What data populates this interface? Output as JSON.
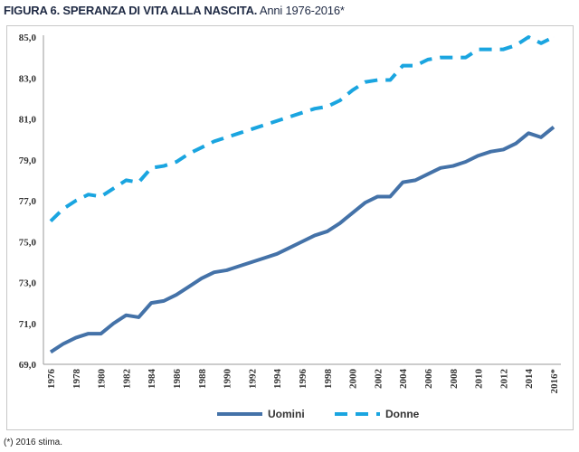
{
  "title": {
    "bold": "FIGURA 6. SPERANZA DI VITA ALLA NASCITA.",
    "normal": " Anni 1976-2016*"
  },
  "footnote": "(*) 2016 stima.",
  "chart_data": {
    "type": "line",
    "title": "FIGURA 6. SPERANZA DI VITA ALLA NASCITA. Anni 1976-2016*",
    "x": [
      1976,
      1977,
      1978,
      1979,
      1980,
      1981,
      1982,
      1983,
      1984,
      1985,
      1986,
      1987,
      1988,
      1989,
      1990,
      1991,
      1992,
      1993,
      1994,
      1995,
      1996,
      1997,
      1998,
      1999,
      2000,
      2001,
      2002,
      2003,
      2004,
      2005,
      2006,
      2007,
      2008,
      2009,
      2010,
      2011,
      2012,
      2013,
      2014,
      2015,
      2016
    ],
    "xtick_labels": [
      "1976",
      "1978",
      "1980",
      "1982",
      "1984",
      "1986",
      "1988",
      "1990",
      "1992",
      "1994",
      "1996",
      "1998",
      "2000",
      "2002",
      "2004",
      "2006",
      "2008",
      "2010",
      "2012",
      "2014",
      "2016*"
    ],
    "ytick_labels": [
      "69,0",
      "71,0",
      "73,0",
      "75,0",
      "77,0",
      "79,0",
      "81,0",
      "83,0",
      "85,0"
    ],
    "ylim": [
      69,
      85
    ],
    "grid": false,
    "legend": "bottom",
    "series": [
      {
        "name": "Uomini",
        "color": "#4472a8",
        "style": "solid",
        "values": [
          69.6,
          70.0,
          70.3,
          70.5,
          70.5,
          71.0,
          71.4,
          71.3,
          72.0,
          72.1,
          72.4,
          72.8,
          73.2,
          73.5,
          73.6,
          73.8,
          74.0,
          74.2,
          74.4,
          74.7,
          75.0,
          75.3,
          75.5,
          75.9,
          76.4,
          76.9,
          77.2,
          77.2,
          77.9,
          78.0,
          78.3,
          78.6,
          78.7,
          78.9,
          79.2,
          79.4,
          79.5,
          79.8,
          80.3,
          80.1,
          80.6
        ]
      },
      {
        "name": "Donne",
        "color": "#1aa5e0",
        "style": "dashed",
        "values": [
          76.0,
          76.6,
          77.0,
          77.3,
          77.2,
          77.6,
          78.0,
          77.9,
          78.6,
          78.7,
          78.9,
          79.3,
          79.6,
          79.9,
          80.1,
          80.3,
          80.5,
          80.7,
          80.9,
          81.1,
          81.3,
          81.5,
          81.6,
          81.9,
          82.4,
          82.8,
          82.9,
          82.9,
          83.6,
          83.6,
          83.9,
          84.0,
          84.0,
          84.0,
          84.4,
          84.4,
          84.4,
          84.6,
          85.0,
          84.7,
          85.0
        ]
      }
    ]
  }
}
